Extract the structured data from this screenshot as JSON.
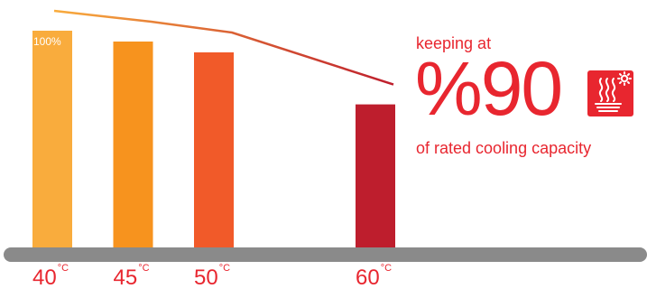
{
  "chart_data": {
    "type": "bar",
    "categories": [
      "40",
      "45",
      "50",
      "60"
    ],
    "category_unit": "°C",
    "values": [
      100,
      95,
      90,
      66
    ],
    "data_labels": [
      "100%",
      "",
      "",
      ""
    ],
    "bar_colors": [
      "#f9ac3d",
      "#f7931e",
      "#f15a29",
      "#be1e2d"
    ],
    "trend_line_colors": [
      "#f9ac3d",
      "#be1e2d"
    ],
    "ylim": [
      0,
      100
    ],
    "grid": false,
    "legend": "none",
    "baseline_color": "#8a8a8a"
  },
  "callout": {
    "line1": "keeping at",
    "value": "%90",
    "line3": "of rated cooling capacity",
    "accent": "#e8262f",
    "icon": "heat-waves-sun-icon"
  }
}
